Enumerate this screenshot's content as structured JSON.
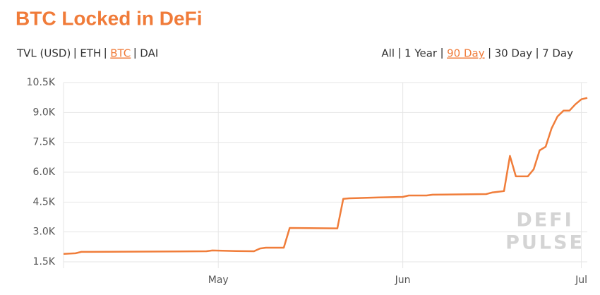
{
  "chart_data": {
    "type": "line",
    "title": "BTC Locked in DeFi",
    "metric_options": [
      "TVL (USD)",
      "ETH",
      "BTC",
      "DAI"
    ],
    "metric_selected": "BTC",
    "range_options": [
      "All",
      "1 Year",
      "90 Day",
      "30 Day",
      "7 Day"
    ],
    "range_selected": "90 Day",
    "watermark": [
      "DEFI",
      "PULSE"
    ],
    "color": "#f07d3a",
    "grid": true,
    "x": [
      0,
      2,
      3,
      24,
      25,
      29,
      32,
      33,
      34,
      37,
      38,
      46,
      47,
      48,
      53,
      57,
      58,
      61,
      62,
      71,
      72,
      74,
      75,
      76,
      78,
      79,
      80,
      81,
      82,
      83,
      84,
      85,
      86,
      87,
      88
    ],
    "values": [
      1900,
      1930,
      2000,
      2030,
      2070,
      2040,
      2030,
      2170,
      2210,
      2210,
      3200,
      3180,
      4660,
      4690,
      4730,
      4760,
      4830,
      4830,
      4870,
      4900,
      4980,
      5050,
      6820,
      5790,
      5790,
      6150,
      7100,
      7280,
      8200,
      8800,
      9090,
      9090,
      9410,
      9660,
      9730
    ],
    "xlim": [
      0,
      88
    ],
    "xticks": [
      {
        "value": 26,
        "label": "May"
      },
      {
        "value": 57,
        "label": "Jun"
      },
      {
        "value": 87,
        "label": "Jul"
      }
    ],
    "ylim": [
      1500,
      10500
    ],
    "yticks": [
      {
        "value": 1500,
        "label": "1.5K"
      },
      {
        "value": 3000,
        "label": "3.0K"
      },
      {
        "value": 4500,
        "label": "4.5K"
      },
      {
        "value": 6000,
        "label": "6.0K"
      },
      {
        "value": 7500,
        "label": "7.5K"
      },
      {
        "value": 9000,
        "label": "9.0K"
      },
      {
        "value": 10500,
        "label": "10.5K"
      }
    ]
  }
}
